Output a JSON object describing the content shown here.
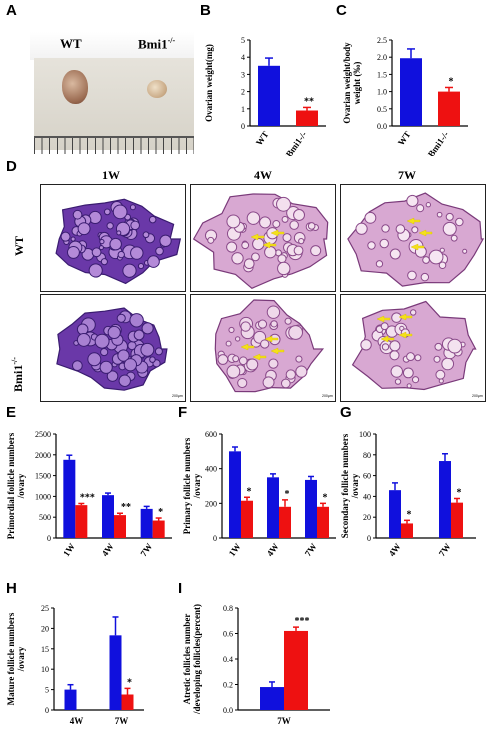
{
  "panel_labels": {
    "A": "A",
    "B": "B",
    "C": "C",
    "D": "D",
    "E": "E",
    "F": "F",
    "G": "G",
    "H": "H",
    "I": "I"
  },
  "panelA": {
    "wt_label": "WT",
    "ko_label": "Bmi1",
    "ko_sup": "-/-"
  },
  "panelD": {
    "col_1": "1W",
    "col_2": "4W",
    "col_3": "7W",
    "row_wt": "WT",
    "row_ko": "Bmi1",
    "row_ko_sup": "-/-",
    "scale_text": "200μm"
  },
  "colors": {
    "wt": "#1010dd",
    "ko": "#ee1111",
    "stain_purple": "#6a38a8",
    "stain_pink": "#d8a8d2"
  },
  "chart_data": [
    {
      "id": "B",
      "type": "bar",
      "ylabel": "Ovarian weight(mg)",
      "categories": [
        "WT",
        "Bmi1-/-"
      ],
      "values": [
        3.5,
        0.9
      ],
      "errors": [
        0.45,
        0.18
      ],
      "sig": [
        "",
        "**"
      ],
      "ylim": [
        0,
        5
      ],
      "yticks": [
        0,
        1,
        2,
        3,
        4,
        5
      ]
    },
    {
      "id": "C",
      "type": "bar",
      "ylabel": "Ovarian weight/body weight (‰)",
      "categories": [
        "WT",
        "Bmi1-/-"
      ],
      "values": [
        1.97,
        1.0
      ],
      "errors": [
        0.27,
        0.12
      ],
      "sig": [
        "",
        "*"
      ],
      "ylim": [
        0,
        2.5
      ],
      "yticks": [
        0.0,
        0.5,
        1.0,
        1.5,
        2.0,
        2.5
      ]
    },
    {
      "id": "E",
      "type": "bar",
      "ylabel": "Primordial follicle numbers /ovary",
      "categories": [
        "1W",
        "4W",
        "7W"
      ],
      "series": [
        {
          "values": [
            1880,
            1030,
            700
          ],
          "errors": [
            110,
            50,
            60
          ]
        },
        {
          "values": [
            790,
            550,
            420
          ],
          "errors": [
            40,
            45,
            60
          ]
        }
      ],
      "sig": [
        "***",
        "**",
        "*"
      ],
      "ylim": [
        0,
        2500
      ],
      "yticks": [
        0,
        500,
        1000,
        1500,
        2000,
        2500
      ]
    },
    {
      "id": "F",
      "type": "bar",
      "ylabel": "Primary follicle numbers /ovary",
      "categories": [
        "1W",
        "4W",
        "7W"
      ],
      "series": [
        {
          "values": [
            500,
            350,
            335
          ],
          "errors": [
            25,
            20,
            20
          ]
        },
        {
          "values": [
            215,
            180,
            180
          ],
          "errors": [
            20,
            40,
            20
          ]
        }
      ],
      "sig": [
        "*",
        "*",
        "*"
      ],
      "ylim": [
        0,
        600
      ],
      "yticks": [
        0,
        200,
        400,
        600
      ]
    },
    {
      "id": "G",
      "type": "bar",
      "ylabel": "Secondary follicle numbers /ovary",
      "categories": [
        "4W",
        "7W"
      ],
      "series": [
        {
          "values": [
            46,
            74
          ],
          "errors": [
            7,
            7
          ]
        },
        {
          "values": [
            14,
            34
          ],
          "errors": [
            3,
            4
          ]
        }
      ],
      "sig": [
        "*",
        "*"
      ],
      "ylim": [
        0,
        100
      ],
      "yticks": [
        0,
        20,
        40,
        60,
        80,
        100
      ]
    },
    {
      "id": "H",
      "type": "bar",
      "ylabel": "Mature follicle numbers /ovary",
      "categories": [
        "4W",
        "7W"
      ],
      "series": [
        {
          "values": [
            5,
            18.3
          ],
          "errors": [
            1.2,
            4.5
          ]
        },
        {
          "values": [
            0,
            3.8
          ],
          "errors": [
            0,
            1.5
          ]
        }
      ],
      "sig": [
        "",
        "*"
      ],
      "ylim": [
        0,
        25
      ],
      "yticks": [
        0,
        5,
        10,
        15,
        20,
        25
      ]
    },
    {
      "id": "I",
      "type": "bar",
      "ylabel": "Atretic follicles number /developing follicles(percent)",
      "categories": [
        "7W"
      ],
      "series": [
        {
          "values": [
            0.18
          ],
          "errors": [
            0.04
          ]
        },
        {
          "values": [
            0.62
          ],
          "errors": [
            0.03
          ]
        }
      ],
      "sig": [
        "***"
      ],
      "ylim": [
        0,
        0.8
      ],
      "yticks": [
        0.0,
        0.2,
        0.4,
        0.6,
        0.8
      ]
    }
  ]
}
